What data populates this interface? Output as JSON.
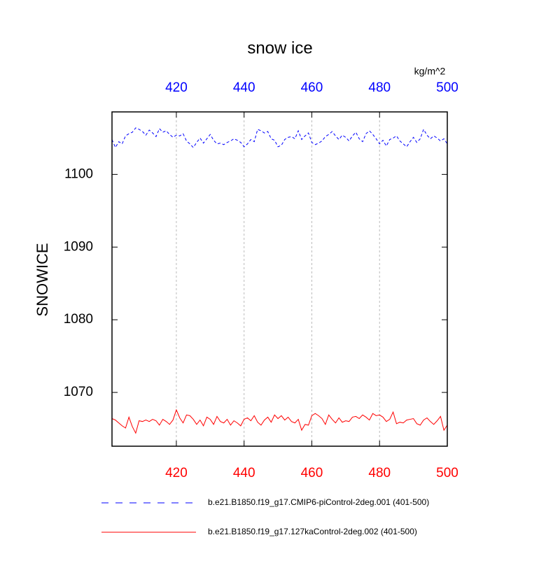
{
  "chart_data": {
    "type": "line",
    "title": "snow ice",
    "y_label": "SNOWICE",
    "units": "kg/m^2",
    "x": [
      401,
      402,
      403,
      404,
      405,
      406,
      407,
      408,
      409,
      410,
      411,
      412,
      413,
      414,
      415,
      416,
      417,
      418,
      419,
      420,
      421,
      422,
      423,
      424,
      425,
      426,
      427,
      428,
      429,
      430,
      431,
      432,
      433,
      434,
      435,
      436,
      437,
      438,
      439,
      440,
      441,
      442,
      443,
      444,
      445,
      446,
      447,
      448,
      449,
      450,
      451,
      452,
      453,
      454,
      455,
      456,
      457,
      458,
      459,
      460,
      461,
      462,
      463,
      464,
      465,
      466,
      467,
      468,
      469,
      470,
      471,
      472,
      473,
      474,
      475,
      476,
      477,
      478,
      479,
      480,
      481,
      482,
      483,
      484,
      485,
      486,
      487,
      488,
      489,
      490,
      491,
      492,
      493,
      494,
      495,
      496,
      497,
      498,
      499,
      500
    ],
    "series": [
      {
        "name": "b.e21.B1850.f19_g17.CMIP6-piControl-2deg.001 (401-500)",
        "color": "#0000ff",
        "line_style": "dashed",
        "values": [
          1104.8,
          1103.7,
          1104.5,
          1104.2,
          1105.3,
          1105.6,
          1105.8,
          1106.4,
          1106.2,
          1105.9,
          1105.4,
          1106.1,
          1105.7,
          1105.2,
          1106.3,
          1105.8,
          1106.0,
          1105.5,
          1105.1,
          1105.4,
          1105.3,
          1105.6,
          1104.6,
          1104.2,
          1103.7,
          1104.4,
          1105.0,
          1104.3,
          1104.9,
          1105.5,
          1104.7,
          1104.2,
          1104.3,
          1104.1,
          1104.4,
          1104.6,
          1104.9,
          1104.7,
          1104.4,
          1103.8,
          1104.2,
          1104.8,
          1104.5,
          1106.2,
          1106.0,
          1105.7,
          1105.9,
          1104.9,
          1104.7,
          1103.8,
          1104.0,
          1104.8,
          1105.1,
          1105.2,
          1104.9,
          1106.0,
          1104.8,
          1105.3,
          1105.7,
          1104.4,
          1104.1,
          1104.3,
          1104.6,
          1105.2,
          1105.5,
          1105.9,
          1105.3,
          1104.8,
          1105.4,
          1105.1,
          1104.6,
          1105.3,
          1105.8,
          1104.9,
          1104.5,
          1105.6,
          1106.0,
          1105.5,
          1104.9,
          1104.2,
          1104.7,
          1103.9,
          1104.8,
          1105.0,
          1105.3,
          1104.6,
          1104.2,
          1103.8,
          1104.5,
          1105.1,
          1104.4,
          1104.9,
          1106.2,
          1105.4,
          1104.9,
          1105.3,
          1105.0,
          1104.6,
          1104.9,
          1104.2
        ]
      },
      {
        "name": "b.e21.B1850.f19_g17.127kaControl-2deg.002 (401-500)",
        "color": "#ff0000",
        "line_style": "solid",
        "values": [
          1066.4,
          1066.2,
          1065.8,
          1065.4,
          1065.1,
          1066.6,
          1065.3,
          1064.4,
          1066.1,
          1066.0,
          1066.2,
          1066.0,
          1066.3,
          1066.1,
          1065.5,
          1066.3,
          1066.0,
          1065.6,
          1066.2,
          1067.6,
          1066.5,
          1065.8,
          1066.9,
          1066.8,
          1066.3,
          1065.6,
          1066.2,
          1065.4,
          1066.6,
          1066.3,
          1065.6,
          1066.7,
          1066.0,
          1065.8,
          1066.3,
          1065.5,
          1066.1,
          1065.8,
          1065.4,
          1066.3,
          1066.5,
          1066.1,
          1066.8,
          1065.9,
          1065.5,
          1066.2,
          1066.6,
          1065.9,
          1066.9,
          1066.4,
          1066.8,
          1066.2,
          1066.6,
          1066.0,
          1065.8,
          1066.3,
          1064.8,
          1065.6,
          1065.5,
          1066.8,
          1067.1,
          1066.8,
          1066.4,
          1065.6,
          1066.9,
          1066.3,
          1065.8,
          1066.5,
          1065.9,
          1066.1,
          1066.0,
          1066.6,
          1066.7,
          1066.4,
          1066.9,
          1066.6,
          1066.2,
          1067.1,
          1066.8,
          1066.9,
          1066.6,
          1066.0,
          1066.3,
          1067.3,
          1065.7,
          1065.9,
          1065.8,
          1066.2,
          1066.3,
          1066.4,
          1065.7,
          1065.5,
          1066.2,
          1066.5,
          1066.0,
          1065.6,
          1066.1,
          1066.7,
          1064.8,
          1065.5
        ]
      }
    ],
    "xlim": [
      401,
      500
    ],
    "xticks": [
      420,
      440,
      460,
      480,
      500
    ],
    "ylim": [
      1062.6,
      1108.6
    ],
    "yticks": [
      1070,
      1080,
      1090,
      1100
    ],
    "grid": true
  }
}
